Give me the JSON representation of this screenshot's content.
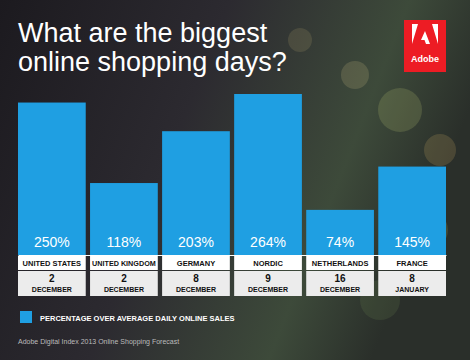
{
  "chart_data": {
    "type": "bar",
    "title": "What are the biggest online shopping days?",
    "logo": "Adobe",
    "categories": [
      "UNITED STATES",
      "UNITED KINGDOM",
      "GERMANY",
      "NORDIC",
      "NETHERLANDS",
      "FRANCE"
    ],
    "dates": [
      "2 DECEMBER",
      "2 DECEMBER",
      "8 DECEMBER",
      "9 DECEMBER",
      "16 DECEMBER",
      "8 JANUARY"
    ],
    "series": [
      {
        "name": "PERCENTAGE OVER AVERAGE DAILY ONLINE SALES",
        "color": "#1f9fe2",
        "values": [
          250,
          118,
          203,
          264,
          74,
          145
        ],
        "value_labels": [
          "250%",
          "118%",
          "203%",
          "264%",
          "74%",
          "145%"
        ]
      }
    ],
    "ylim": [
      0,
      264
    ],
    "tick_labels": false,
    "data_labels": true,
    "legend": "bottom left",
    "source": "Adobe Digital Index 2013 Online Shopping Forecast"
  }
}
